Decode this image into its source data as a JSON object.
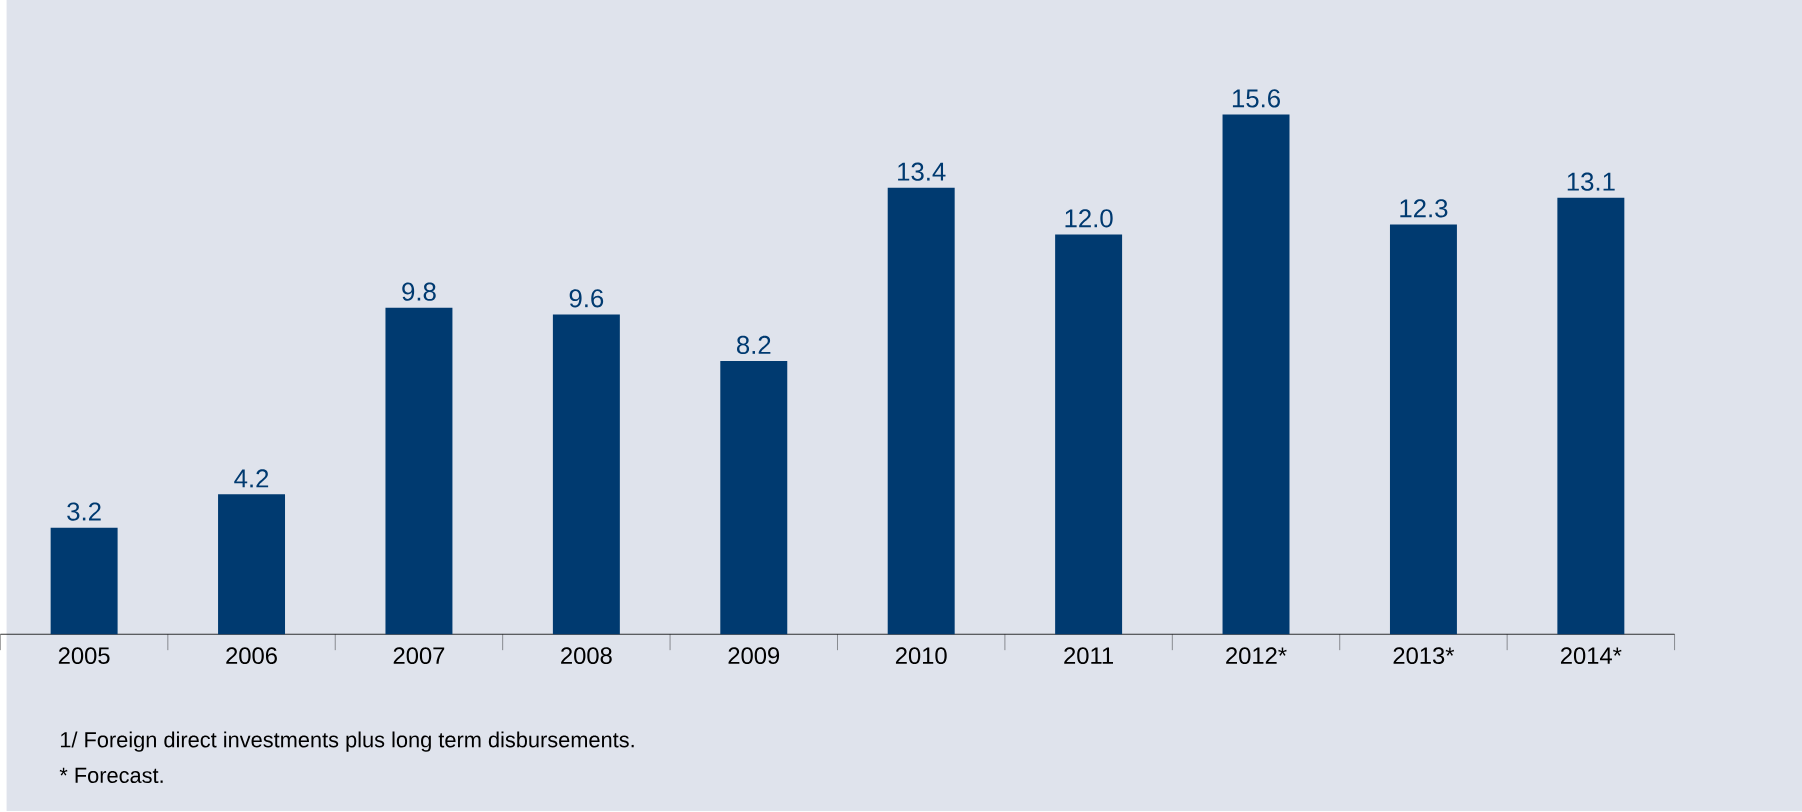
{
  "chart_data": {
    "type": "bar",
    "categories": [
      "2005",
      "2006",
      "2007",
      "2008",
      "2009",
      "2010",
      "2011",
      "2012*",
      "2013*",
      "2014*"
    ],
    "values": [
      3.2,
      4.2,
      9.8,
      9.6,
      8.2,
      13.4,
      12.0,
      15.6,
      12.3,
      13.1
    ],
    "value_labels": [
      "3.2",
      "4.2",
      "9.8",
      "9.6",
      "8.2",
      "13.4",
      "12.0",
      "15.6",
      "12.3",
      "13.1"
    ],
    "color": "#003a70",
    "annotations": [
      "1/ Foreign direct investments plus long term disbursements.",
      "* Forecast."
    ]
  }
}
